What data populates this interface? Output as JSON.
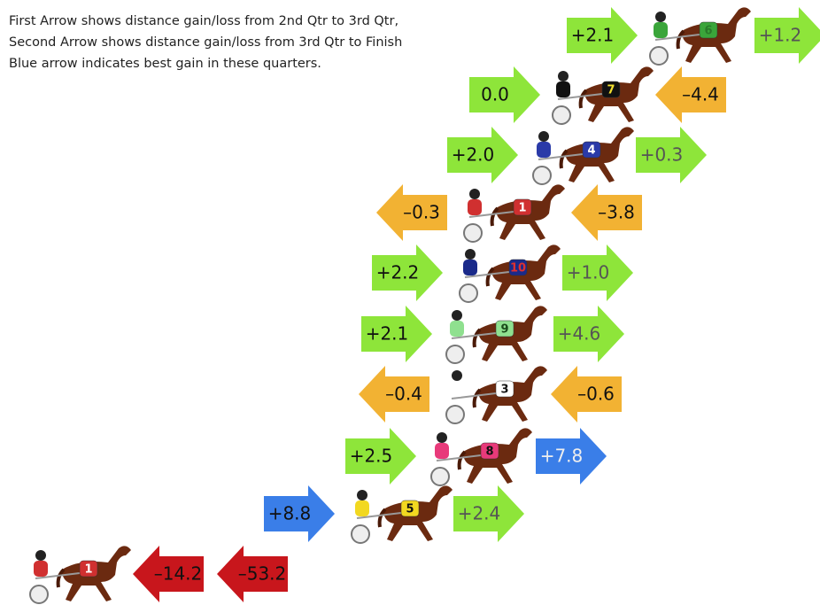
{
  "notes": [
    "First Arrow shows distance gain/loss from 2nd Qtr to 3rd Qtr,",
    "Second Arrow shows distance gain/loss from 3rd Qtr to Finish",
    "Blue arrow indicates best gain in these quarters."
  ],
  "horses": [
    {
      "number": "6",
      "cloth": "#3aa53a",
      "number_color": "#2a7a2a",
      "arrows": [
        {
          "label": "+2.1",
          "color": "#8ee53a",
          "direction": "right",
          "text_color": "#111"
        },
        {
          "label": "+1.2",
          "color": "#8ee53a",
          "direction": "right",
          "text_color": "#555"
        }
      ]
    },
    {
      "number": "7",
      "cloth": "#111111",
      "number_color": "#f2e030",
      "arrows": [
        {
          "label": "0.0",
          "color": "#8ee53a",
          "direction": "right",
          "text_color": "#111"
        },
        {
          "label": "–4.4",
          "color": "#f2b233",
          "direction": "left",
          "text_color": "#111"
        }
      ]
    },
    {
      "number": "4",
      "cloth": "#2a3aa8",
      "number_color": "#ffffff",
      "arrows": [
        {
          "label": "+2.0",
          "color": "#8ee53a",
          "direction": "right",
          "text_color": "#111"
        },
        {
          "label": "+0.3",
          "color": "#8ee53a",
          "direction": "right",
          "text_color": "#555"
        }
      ]
    },
    {
      "number": "1",
      "cloth": "#d03030",
      "number_color": "#ffffff",
      "arrows": [
        {
          "label": "–0.3",
          "color": "#f2b233",
          "direction": "left",
          "text_color": "#111"
        },
        {
          "label": "–3.8",
          "color": "#f2b233",
          "direction": "left",
          "text_color": "#111"
        }
      ]
    },
    {
      "number": "10",
      "cloth": "#1a2a8a",
      "number_color": "#e03030",
      "arrows": [
        {
          "label": "+2.2",
          "color": "#8ee53a",
          "direction": "right",
          "text_color": "#111"
        },
        {
          "label": "+1.0",
          "color": "#8ee53a",
          "direction": "right",
          "text_color": "#555"
        }
      ]
    },
    {
      "number": "9",
      "cloth": "#8fe08f",
      "number_color": "#1a4a1a",
      "arrows": [
        {
          "label": "+2.1",
          "color": "#8ee53a",
          "direction": "right",
          "text_color": "#111"
        },
        {
          "label": "+4.6",
          "color": "#8ee53a",
          "direction": "right",
          "text_color": "#555"
        }
      ]
    },
    {
      "number": "3",
      "cloth": "#ffffff",
      "number_color": "#111111",
      "arrows": [
        {
          "label": "–0.4",
          "color": "#f2b233",
          "direction": "left",
          "text_color": "#111"
        },
        {
          "label": "–0.6",
          "color": "#f2b233",
          "direction": "left",
          "text_color": "#111"
        }
      ]
    },
    {
      "number": "8",
      "cloth": "#e83a7a",
      "number_color": "#111111",
      "arrows": [
        {
          "label": "+2.5",
          "color": "#8ee53a",
          "direction": "right",
          "text_color": "#111"
        },
        {
          "label": "+7.8",
          "color": "#3a7ee8",
          "direction": "right",
          "text_color": "#eee"
        }
      ]
    },
    {
      "number": "5",
      "cloth": "#f2d820",
      "number_color": "#111111",
      "arrows": [
        {
          "label": "+8.8",
          "color": "#3a7ee8",
          "direction": "right",
          "text_color": "#111"
        },
        {
          "label": "+2.4",
          "color": "#8ee53a",
          "direction": "right",
          "text_color": "#555"
        }
      ]
    },
    {
      "number": "1",
      "cloth": "#d03030",
      "number_color": "#ffffff",
      "arrows": [
        {
          "label": "–14.2",
          "color": "#c8161c",
          "direction": "left",
          "text_color": "#111"
        },
        {
          "label": "–53.2",
          "color": "#c8161c",
          "direction": "left",
          "text_color": "#111"
        }
      ]
    }
  ]
}
